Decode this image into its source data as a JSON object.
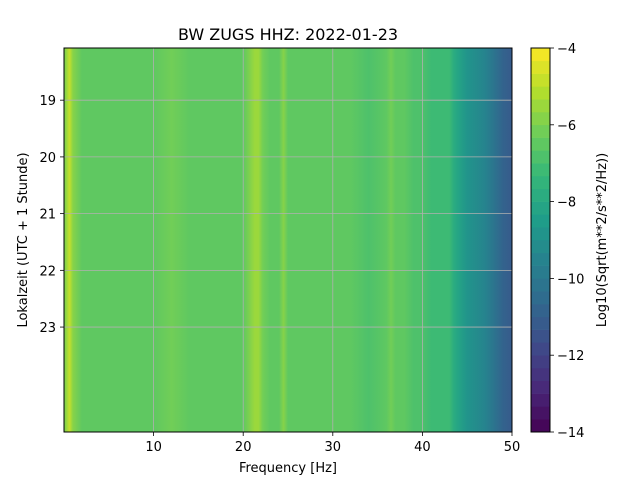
{
  "chart_data": {
    "type": "heatmap",
    "title": "BW ZUGS  HHZ: 2022-01-23",
    "xlabel": "Frequency [Hz]",
    "ylabel": "Lokalzeit (UTC + 1 Stunde)",
    "xlim": [
      0,
      50
    ],
    "ylim": [
      24.85,
      18.08
    ],
    "xticks": [
      10,
      20,
      30,
      40,
      50
    ],
    "yticks": [
      19,
      20,
      21,
      22,
      23
    ],
    "grid": true,
    "colormap": "viridis",
    "colorbar": {
      "label": "Log10(Sqrt(m**2/s**2/Hz))",
      "range": [
        -14,
        -4
      ],
      "ticks": [
        -14,
        -12,
        -10,
        -8,
        -6,
        -4
      ],
      "levels": 30
    },
    "frequency_profile": {
      "frequency_hz": [
        0,
        0.3,
        0.6,
        1.0,
        2,
        4,
        6,
        8,
        10,
        12,
        14,
        16,
        18,
        20,
        21.3,
        21.7,
        22.2,
        23,
        24,
        24.5,
        25,
        26,
        28,
        30,
        32,
        34,
        36,
        36.5,
        37,
        38,
        39,
        40,
        41,
        42,
        43,
        43.5,
        44,
        45,
        46,
        47,
        48,
        49,
        50
      ],
      "log10_amplitude": [
        -6.2,
        -5.4,
        -5.0,
        -6.0,
        -6.35,
        -6.4,
        -6.45,
        -6.5,
        -6.5,
        -6.3,
        -6.55,
        -6.5,
        -6.6,
        -6.6,
        -5.5,
        -5.6,
        -6.3,
        -6.4,
        -6.5,
        -6.0,
        -6.6,
        -6.6,
        -6.65,
        -6.6,
        -6.65,
        -6.7,
        -6.6,
        -6.1,
        -6.5,
        -6.6,
        -6.8,
        -6.9,
        -7.1,
        -7.2,
        -7.3,
        -8.0,
        -8.3,
        -8.8,
        -9.2,
        -9.6,
        -10.1,
        -10.7,
        -11.2
      ]
    }
  }
}
